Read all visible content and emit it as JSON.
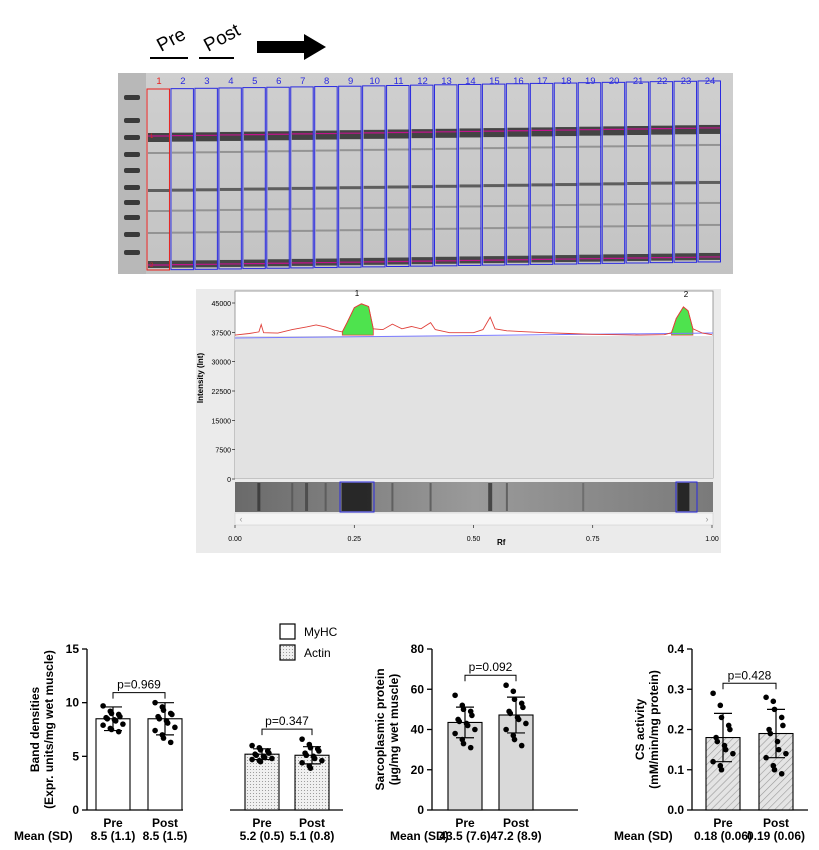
{
  "gel": {
    "labels": {
      "pre": "Pre",
      "post": "Post"
    },
    "lane_numbers": [
      "1",
      "2",
      "3",
      "4",
      "5",
      "6",
      "7",
      "8",
      "9",
      "10",
      "11",
      "12",
      "13",
      "14",
      "15",
      "16",
      "17",
      "18",
      "19",
      "20",
      "21",
      "22",
      "23",
      "24"
    ],
    "lane_color_selected": "#e8201e",
    "lane_color_default": "#2a2ae0",
    "band_marks": [
      "1",
      "2"
    ],
    "arrow_icon": "right-arrow-icon"
  },
  "densitometry": {
    "ylabel": "Intensity (Int)",
    "y_ticks": [
      "45000",
      "37500",
      "30000",
      "22500",
      "15000",
      "7500",
      "0"
    ],
    "x_ticks": [
      "0.00",
      "0.25",
      "0.50",
      "0.75",
      "1.00"
    ],
    "xlabel": "Rf",
    "peak_labels": [
      "1",
      "2"
    ],
    "peak_fill": "#4ee34e",
    "trace_color": "#e0403a",
    "baseline_color": "#7a7aff"
  },
  "mean_sd_label": "Mean (SD)",
  "chart_data": [
    {
      "type": "bar",
      "id": "band-densities",
      "ylabel_lines": [
        "Band densities",
        "(Expr. units/mg wet muscle)"
      ],
      "ylim": [
        0,
        15
      ],
      "y_ticks": [
        "0",
        "5",
        "10",
        "15"
      ],
      "legend": [
        {
          "label": "MyHC",
          "fill": "white"
        },
        {
          "label": "Actin",
          "fill": "dotted"
        }
      ],
      "groups": [
        {
          "name": "MyHC",
          "categories": [
            "Pre",
            "Post"
          ],
          "values": [
            8.5,
            8.5
          ],
          "sd": [
            1.1,
            1.5
          ],
          "fill": "white",
          "p_value": "p=0.969",
          "mean_sd_text": [
            "8.5 (1.1)",
            "8.5 (1.5)"
          ],
          "points": [
            [
              9.7,
              9.2,
              9.0,
              8.9,
              8.7,
              8.6,
              8.5,
              8.4,
              8.3,
              8.0,
              7.9,
              7.6,
              7.5,
              7.3
            ],
            [
              10.0,
              9.6,
              9.3,
              9.0,
              8.9,
              8.7,
              8.5,
              8.3,
              8.1,
              7.7,
              7.4,
              7.0,
              6.7,
              6.3
            ]
          ]
        },
        {
          "name": "Actin",
          "categories": [
            "Pre",
            "Post"
          ],
          "values": [
            5.2,
            5.1
          ],
          "sd": [
            0.5,
            0.8
          ],
          "fill": "dotted",
          "p_value": "p=0.347",
          "mean_sd_text": [
            "5.2 (0.5)",
            "5.1 (0.8)"
          ],
          "points": [
            [
              6.0,
              5.8,
              5.6,
              5.5,
              5.3,
              5.2,
              5.1,
              5.0,
              4.9,
              4.8,
              4.7,
              4.6,
              4.5
            ],
            [
              6.6,
              6.1,
              5.8,
              5.7,
              5.5,
              5.3,
              5.1,
              5.0,
              4.8,
              4.6,
              4.4,
              4.1,
              3.9
            ]
          ]
        }
      ]
    },
    {
      "type": "bar",
      "id": "sarcoplasmic-protein",
      "ylabel_lines": [
        "Sarcoplasmic protein",
        "(µg/mg wet muscle)"
      ],
      "ylim": [
        0,
        80
      ],
      "y_ticks": [
        "0",
        "20",
        "40",
        "60",
        "80"
      ],
      "categories": [
        "Pre",
        "Post"
      ],
      "values": [
        43.5,
        47.2
      ],
      "sd": [
        7.6,
        8.9
      ],
      "fill": "gray",
      "p_value": "p=0.092",
      "mean_sd_text": [
        "43.5 (7.6)",
        "47.2 (8.9)"
      ],
      "points": [
        [
          57.0,
          52.0,
          50.0,
          49.0,
          47.0,
          45.0,
          44.0,
          43.0,
          42.0,
          40.0,
          38.0,
          35.0,
          33.0,
          31.0
        ],
        [
          62.0,
          59.0,
          55.0,
          53.0,
          51.0,
          49.0,
          48.0,
          46.0,
          45.0,
          43.0,
          40.0,
          37.0,
          35.0,
          32.0
        ]
      ]
    },
    {
      "type": "bar",
      "id": "cs-activity",
      "ylabel_lines": [
        "CS activity",
        "(mM/min/mg protein)"
      ],
      "ylim": [
        0,
        0.4
      ],
      "y_ticks": [
        "0.0",
        "0.1",
        "0.2",
        "0.3",
        "0.4"
      ],
      "categories": [
        "Pre",
        "Post"
      ],
      "values": [
        0.18,
        0.19
      ],
      "sd": [
        0.06,
        0.06
      ],
      "fill": "hatched",
      "p_value": "p=0.428",
      "mean_sd_text": [
        "0.18 (0.06)",
        "0.19 (0.06)"
      ],
      "points": [
        [
          0.29,
          0.26,
          0.23,
          0.21,
          0.2,
          0.18,
          0.17,
          0.16,
          0.15,
          0.14,
          0.12,
          0.11,
          0.1
        ],
        [
          0.28,
          0.27,
          0.25,
          0.23,
          0.21,
          0.2,
          0.19,
          0.17,
          0.15,
          0.14,
          0.13,
          0.11,
          0.1,
          0.09
        ]
      ]
    }
  ]
}
